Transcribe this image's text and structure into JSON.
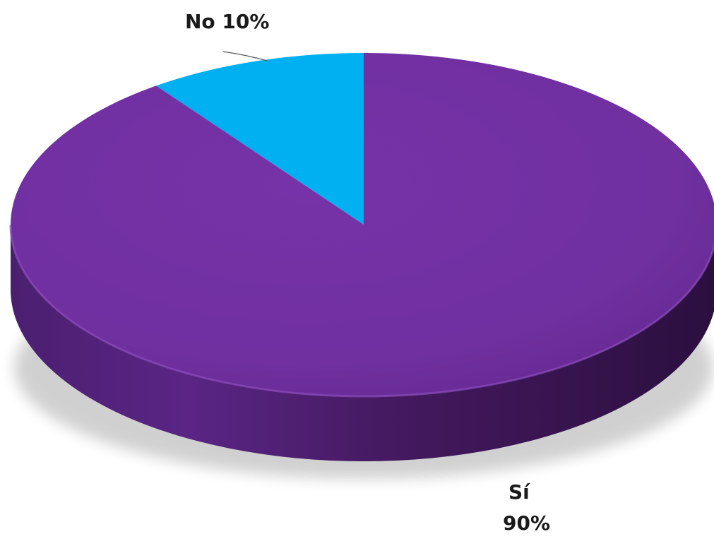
{
  "chart_data": {
    "type": "pie",
    "title": "",
    "categories": [
      "Sí",
      "No"
    ],
    "values": [
      90,
      10
    ],
    "colors": [
      "#7030a0",
      "#00b0f0"
    ],
    "slices": [
      {
        "name": "Sí",
        "value": 90,
        "color": "#7030a0",
        "label_name": "Sí",
        "label_pct": "90%"
      },
      {
        "name": "No",
        "value": 10,
        "color": "#00b0f0",
        "label": "No 10%"
      }
    ],
    "legend": "none",
    "style": "3d"
  }
}
